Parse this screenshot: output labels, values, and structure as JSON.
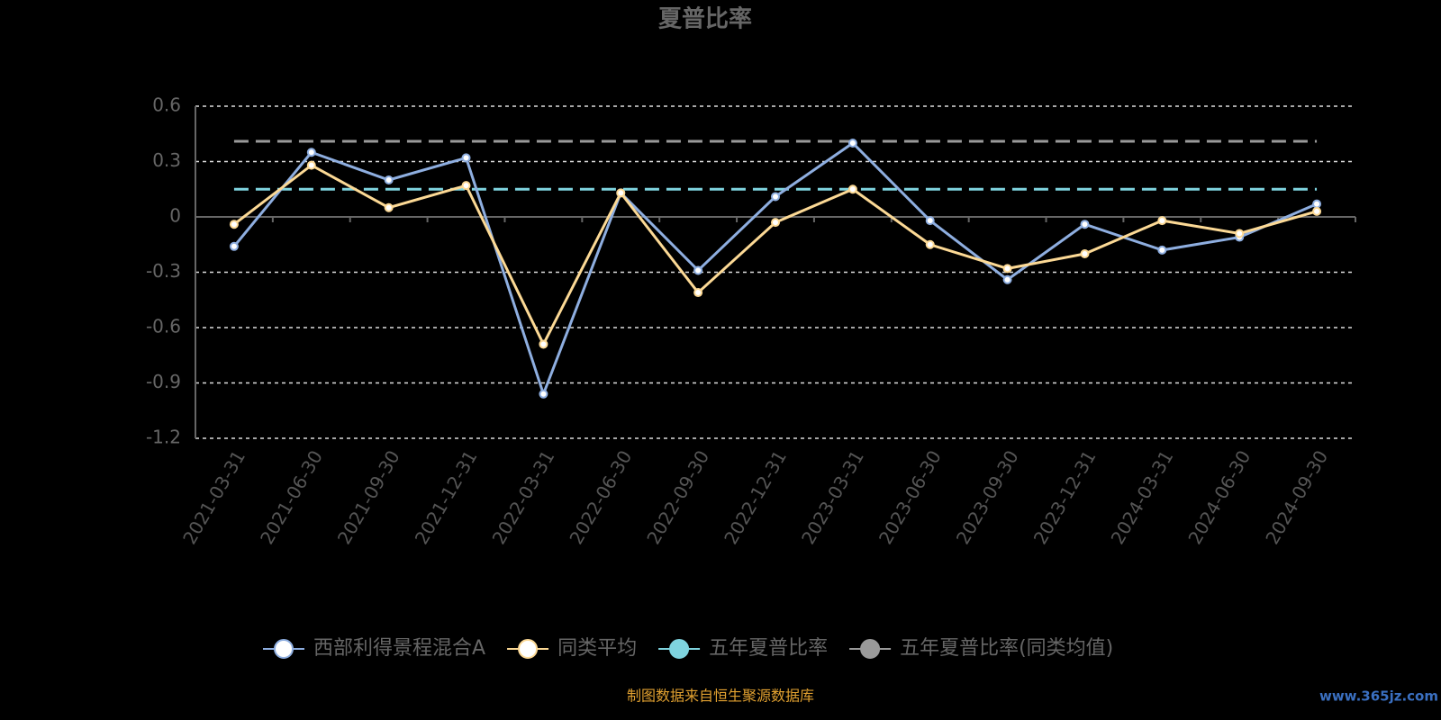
{
  "chart_data": {
    "type": "line",
    "title": "夏普比率",
    "categories": [
      "2021-03-31",
      "2021-06-30",
      "2021-09-30",
      "2021-12-31",
      "2022-03-31",
      "2022-06-30",
      "2022-09-30",
      "2022-12-31",
      "2023-03-31",
      "2023-06-30",
      "2023-09-30",
      "2023-12-31",
      "2024-03-31",
      "2024-06-30",
      "2024-09-30"
    ],
    "series": [
      {
        "name": "西部利得景程混合A",
        "color": "#8eaee0",
        "values": [
          -0.16,
          0.35,
          0.2,
          0.32,
          -0.96,
          0.13,
          -0.29,
          0.11,
          0.4,
          -0.02,
          -0.34,
          -0.04,
          -0.18,
          -0.11,
          0.07
        ]
      },
      {
        "name": "同类平均",
        "color": "#fcd995",
        "values": [
          -0.04,
          0.28,
          0.05,
          0.17,
          -0.69,
          0.13,
          -0.41,
          -0.03,
          0.15,
          -0.15,
          -0.28,
          -0.2,
          -0.02,
          -0.09,
          0.03
        ]
      },
      {
        "name": "五年夏普比率",
        "color": "#7fd4df",
        "value": 0.15
      },
      {
        "name": "五年夏普比率(同类均值)",
        "color": "#9a9a9a",
        "value": 0.41
      }
    ],
    "ylim": [
      -1.2,
      0.6
    ],
    "yticks": [
      0.6,
      0.3,
      0,
      -0.3,
      -0.6,
      -0.9,
      -1.2
    ],
    "grid": true,
    "legend": "bottom",
    "source": "制图数据来自恒生聚源数据库",
    "watermark": "www.365jz.com"
  }
}
